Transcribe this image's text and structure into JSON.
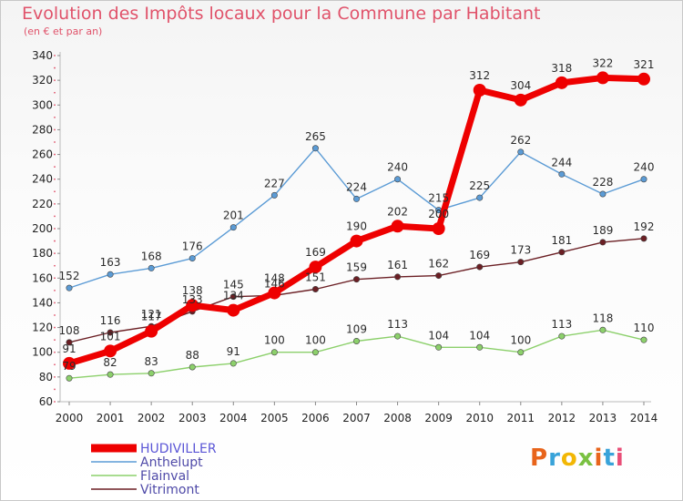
{
  "title": "Evolution des Impôts locaux pour la Commune par Habitant",
  "subtitle": "(en € et par an)",
  "logo": {
    "text": "Proxiti",
    "colors": [
      "#e8641b",
      "#39a3d9",
      "#f2b705",
      "#7ac142",
      "#e8641b",
      "#39a3d9",
      "#e94e77"
    ]
  },
  "chart_data": {
    "type": "line",
    "x": [
      2000,
      2001,
      2002,
      2003,
      2004,
      2005,
      2006,
      2007,
      2008,
      2009,
      2010,
      2011,
      2012,
      2013,
      2014
    ],
    "ylim": [
      60,
      340
    ],
    "yticks": [
      60,
      80,
      100,
      120,
      140,
      160,
      180,
      200,
      220,
      240,
      260,
      280,
      300,
      320,
      340
    ],
    "grid": false,
    "legend_position": "bottom-left",
    "series": [
      {
        "name": "Anthelupt",
        "color": "#5b9bd5",
        "values": [
          152,
          163,
          168,
          176,
          201,
          227,
          265,
          224,
          240,
          215,
          225,
          262,
          244,
          228,
          240
        ]
      },
      {
        "name": "Flainval",
        "color": "#8cd06b",
        "values": [
          79,
          82,
          83,
          88,
          91,
          100,
          100,
          109,
          113,
          104,
          104,
          100,
          113,
          118,
          110
        ]
      },
      {
        "name": "Vitrimont",
        "color": "#6b1f24",
        "values": [
          108,
          116,
          121,
          133,
          145,
          146,
          151,
          159,
          161,
          162,
          169,
          173,
          181,
          189,
          192
        ]
      },
      {
        "name": "HUDIVILLER",
        "color": "#ee0000",
        "values": [
          91,
          101,
          117,
          138,
          134,
          148,
          169,
          190,
          202,
          200,
          312,
          304,
          318,
          322,
          321
        ]
      }
    ],
    "labels": {
      "Anthelupt": [
        "152",
        "163",
        "168",
        "176",
        "201",
        "227",
        "265",
        "224",
        "240",
        "215",
        "225",
        "262",
        "244",
        "228",
        "240"
      ],
      "Flainval": [
        "79",
        "82",
        "83",
        "88",
        "91",
        "100",
        "100",
        "109",
        "113",
        "104",
        "104",
        "100",
        "113",
        "118",
        "110"
      ],
      "Vitrimont": [
        "108",
        "116",
        "121",
        "133",
        "145",
        "146",
        "151",
        "159",
        "161",
        "162",
        "169",
        "173",
        "181",
        "189",
        "192"
      ],
      "HUDIVILLER": [
        "91",
        "101",
        "117",
        "138",
        "134",
        "148",
        "169",
        "190",
        "202",
        "200",
        "312",
        "304",
        "318",
        "322",
        "321"
      ]
    },
    "legend": [
      "HUDIVILLER",
      "Anthelupt",
      "Flainval",
      "Vitrimont"
    ]
  }
}
